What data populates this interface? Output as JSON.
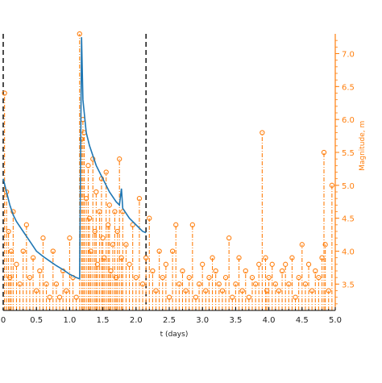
{
  "chart_data": {
    "type": "line",
    "title": "",
    "xlabel": "t (days)",
    "ylabel_right": "Magnitude, m",
    "xlim": [
      0,
      5.0
    ],
    "ylim": [
      3.1,
      7.3
    ],
    "x_ticks": [
      "0",
      "0.5",
      "1.0",
      "1.5",
      "2.0",
      "2.5",
      "3.0",
      "3.5",
      "4.0",
      "4.5",
      "5.0"
    ],
    "y_ticks_right": [
      "3.5",
      "4.0",
      "4.5",
      "5.0",
      "5.5",
      "6.0",
      "6.5",
      "7.0"
    ],
    "vlines": [
      0,
      2.15
    ],
    "grid": false,
    "colors": {
      "series_curve": "#1f77b4",
      "series_stems": "#ff7f0e",
      "right_axis": "#ff7f0e"
    },
    "series": [
      {
        "style": "line",
        "x": [
          0.0,
          0.05,
          0.1,
          0.15,
          0.2,
          0.3,
          0.4,
          0.5,
          0.6,
          0.7,
          0.8,
          0.9,
          1.0,
          1.1,
          1.15,
          1.18,
          1.2,
          1.25,
          1.3,
          1.4,
          1.5,
          1.6,
          1.7,
          1.75,
          1.78,
          1.8,
          1.9,
          2.0,
          2.1,
          2.15
        ],
        "y": [
          5.1,
          4.9,
          4.7,
          4.55,
          4.45,
          4.3,
          4.15,
          4.0,
          3.92,
          3.85,
          3.78,
          3.72,
          3.65,
          3.6,
          3.58,
          7.25,
          6.3,
          5.8,
          5.6,
          5.3,
          5.1,
          4.9,
          4.75,
          4.7,
          4.95,
          4.65,
          4.5,
          4.4,
          4.3,
          4.28
        ]
      },
      {
        "style": "stem",
        "baseline": 3.1,
        "x": [
          0.02,
          0.05,
          0.08,
          0.1,
          0.12,
          0.15,
          0.2,
          0.25,
          0.3,
          0.35,
          0.4,
          0.45,
          0.5,
          0.55,
          0.6,
          0.65,
          0.7,
          0.75,
          0.8,
          0.85,
          0.9,
          0.95,
          1.0,
          1.05,
          1.1,
          1.15,
          1.18,
          1.2,
          1.22,
          1.25,
          1.28,
          1.3,
          1.32,
          1.35,
          1.38,
          1.4,
          1.42,
          1.45,
          1.48,
          1.5,
          1.52,
          1.55,
          1.58,
          1.6,
          1.62,
          1.65,
          1.68,
          1.7,
          1.72,
          1.75,
          1.78,
          1.8,
          1.85,
          1.9,
          1.95,
          2.0,
          2.05,
          2.1,
          2.15,
          2.2,
          2.25,
          2.3,
          2.35,
          2.4,
          2.45,
          2.5,
          2.55,
          2.6,
          2.65,
          2.7,
          2.75,
          2.8,
          2.85,
          2.9,
          2.95,
          3.0,
          3.05,
          3.1,
          3.15,
          3.2,
          3.25,
          3.3,
          3.35,
          3.4,
          3.45,
          3.5,
          3.55,
          3.6,
          3.65,
          3.7,
          3.75,
          3.8,
          3.85,
          3.9,
          3.95,
          3.97,
          4.0,
          4.05,
          4.1,
          4.15,
          4.2,
          4.25,
          4.3,
          4.35,
          4.4,
          4.45,
          4.5,
          4.55,
          4.6,
          4.65,
          4.7,
          4.75,
          4.8,
          4.83,
          4.85,
          4.9,
          4.95
        ],
        "y": [
          6.4,
          4.9,
          4.3,
          3.6,
          4.0,
          4.6,
          3.8,
          3.5,
          4.0,
          4.4,
          3.6,
          3.9,
          3.4,
          3.7,
          4.2,
          3.5,
          3.3,
          4.0,
          3.5,
          3.3,
          3.7,
          3.4,
          4.2,
          3.6,
          3.3,
          7.3,
          5.7,
          6.0,
          5.8,
          4.8,
          5.3,
          4.5,
          4.0,
          5.4,
          4.3,
          4.9,
          3.8,
          4.6,
          5.1,
          4.2,
          3.9,
          5.2,
          4.4,
          4.7,
          3.7,
          4.1,
          4.6,
          3.6,
          4.3,
          5.4,
          3.9,
          4.6,
          4.1,
          3.8,
          4.4,
          3.6,
          4.8,
          3.5,
          3.9,
          4.5,
          3.7,
          3.4,
          4.0,
          3.6,
          3.8,
          3.3,
          4.0,
          4.4,
          3.5,
          3.7,
          3.4,
          3.6,
          4.4,
          3.3,
          3.5,
          3.8,
          3.4,
          3.6,
          3.9,
          3.7,
          3.5,
          3.4,
          3.6,
          4.2,
          3.3,
          3.5,
          3.9,
          3.4,
          3.7,
          3.3,
          3.6,
          3.5,
          3.8,
          5.8,
          3.9,
          3.4,
          3.6,
          3.8,
          3.5,
          3.4,
          3.7,
          3.8,
          3.5,
          3.9,
          3.3,
          3.6,
          4.1,
          3.5,
          3.8,
          3.4,
          3.7,
          3.6,
          3.9,
          5.5,
          4.1,
          3.4,
          5.0
        ]
      }
    ]
  }
}
